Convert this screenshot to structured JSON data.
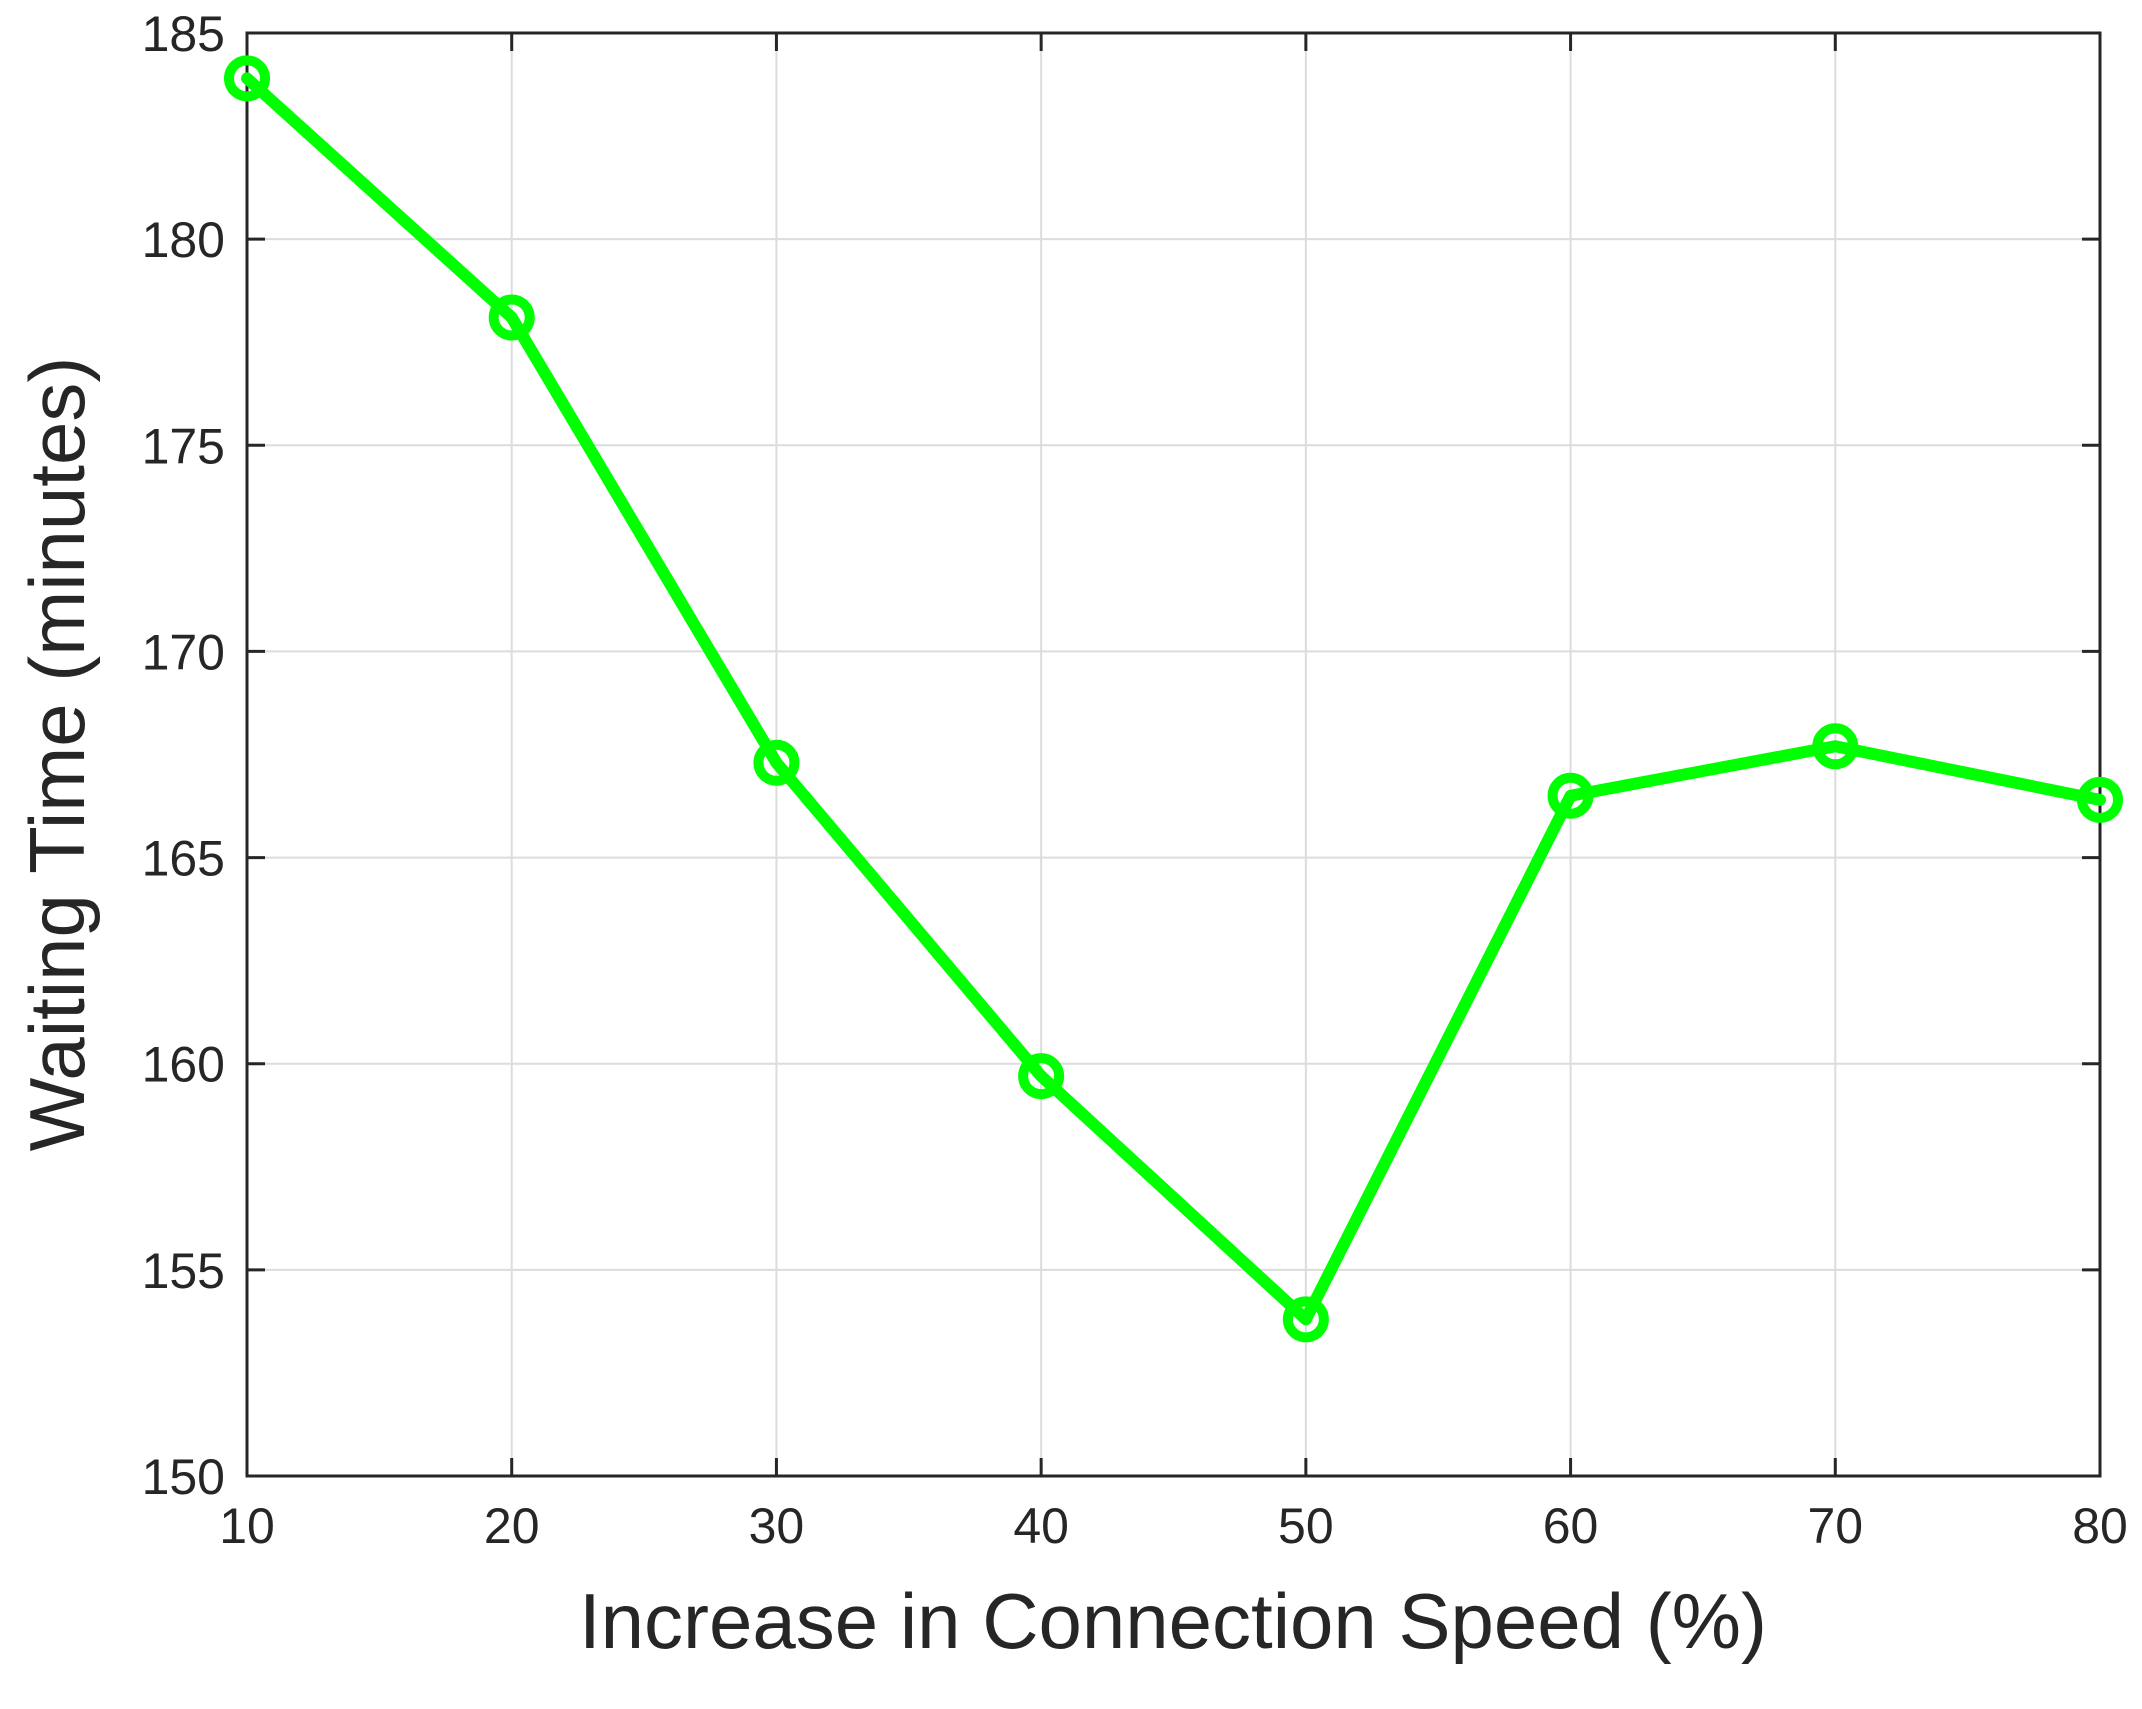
{
  "chart_data": {
    "type": "line",
    "title": "",
    "xlabel": "Increase in Connection Speed (%)",
    "ylabel": "Waiting Time (minutes)",
    "xlim": [
      10,
      80
    ],
    "ylim": [
      150,
      185
    ],
    "xticks": [
      10,
      20,
      30,
      40,
      50,
      60,
      70,
      80
    ],
    "yticks": [
      150,
      155,
      160,
      165,
      170,
      175,
      180,
      185
    ],
    "grid": true,
    "legend": "none",
    "series": [
      {
        "x": [
          10,
          20,
          30,
          40,
          50,
          60,
          70,
          80
        ],
        "y": [
          183.9,
          178.1,
          167.3,
          159.7,
          153.8,
          166.5,
          167.7,
          166.4
        ],
        "color": "#00ff00",
        "marker": "circle-open"
      }
    ]
  },
  "colors": {
    "series": "#00ff00",
    "axis": "#262626",
    "grid": "#dcdcdc",
    "background": "#ffffff"
  }
}
